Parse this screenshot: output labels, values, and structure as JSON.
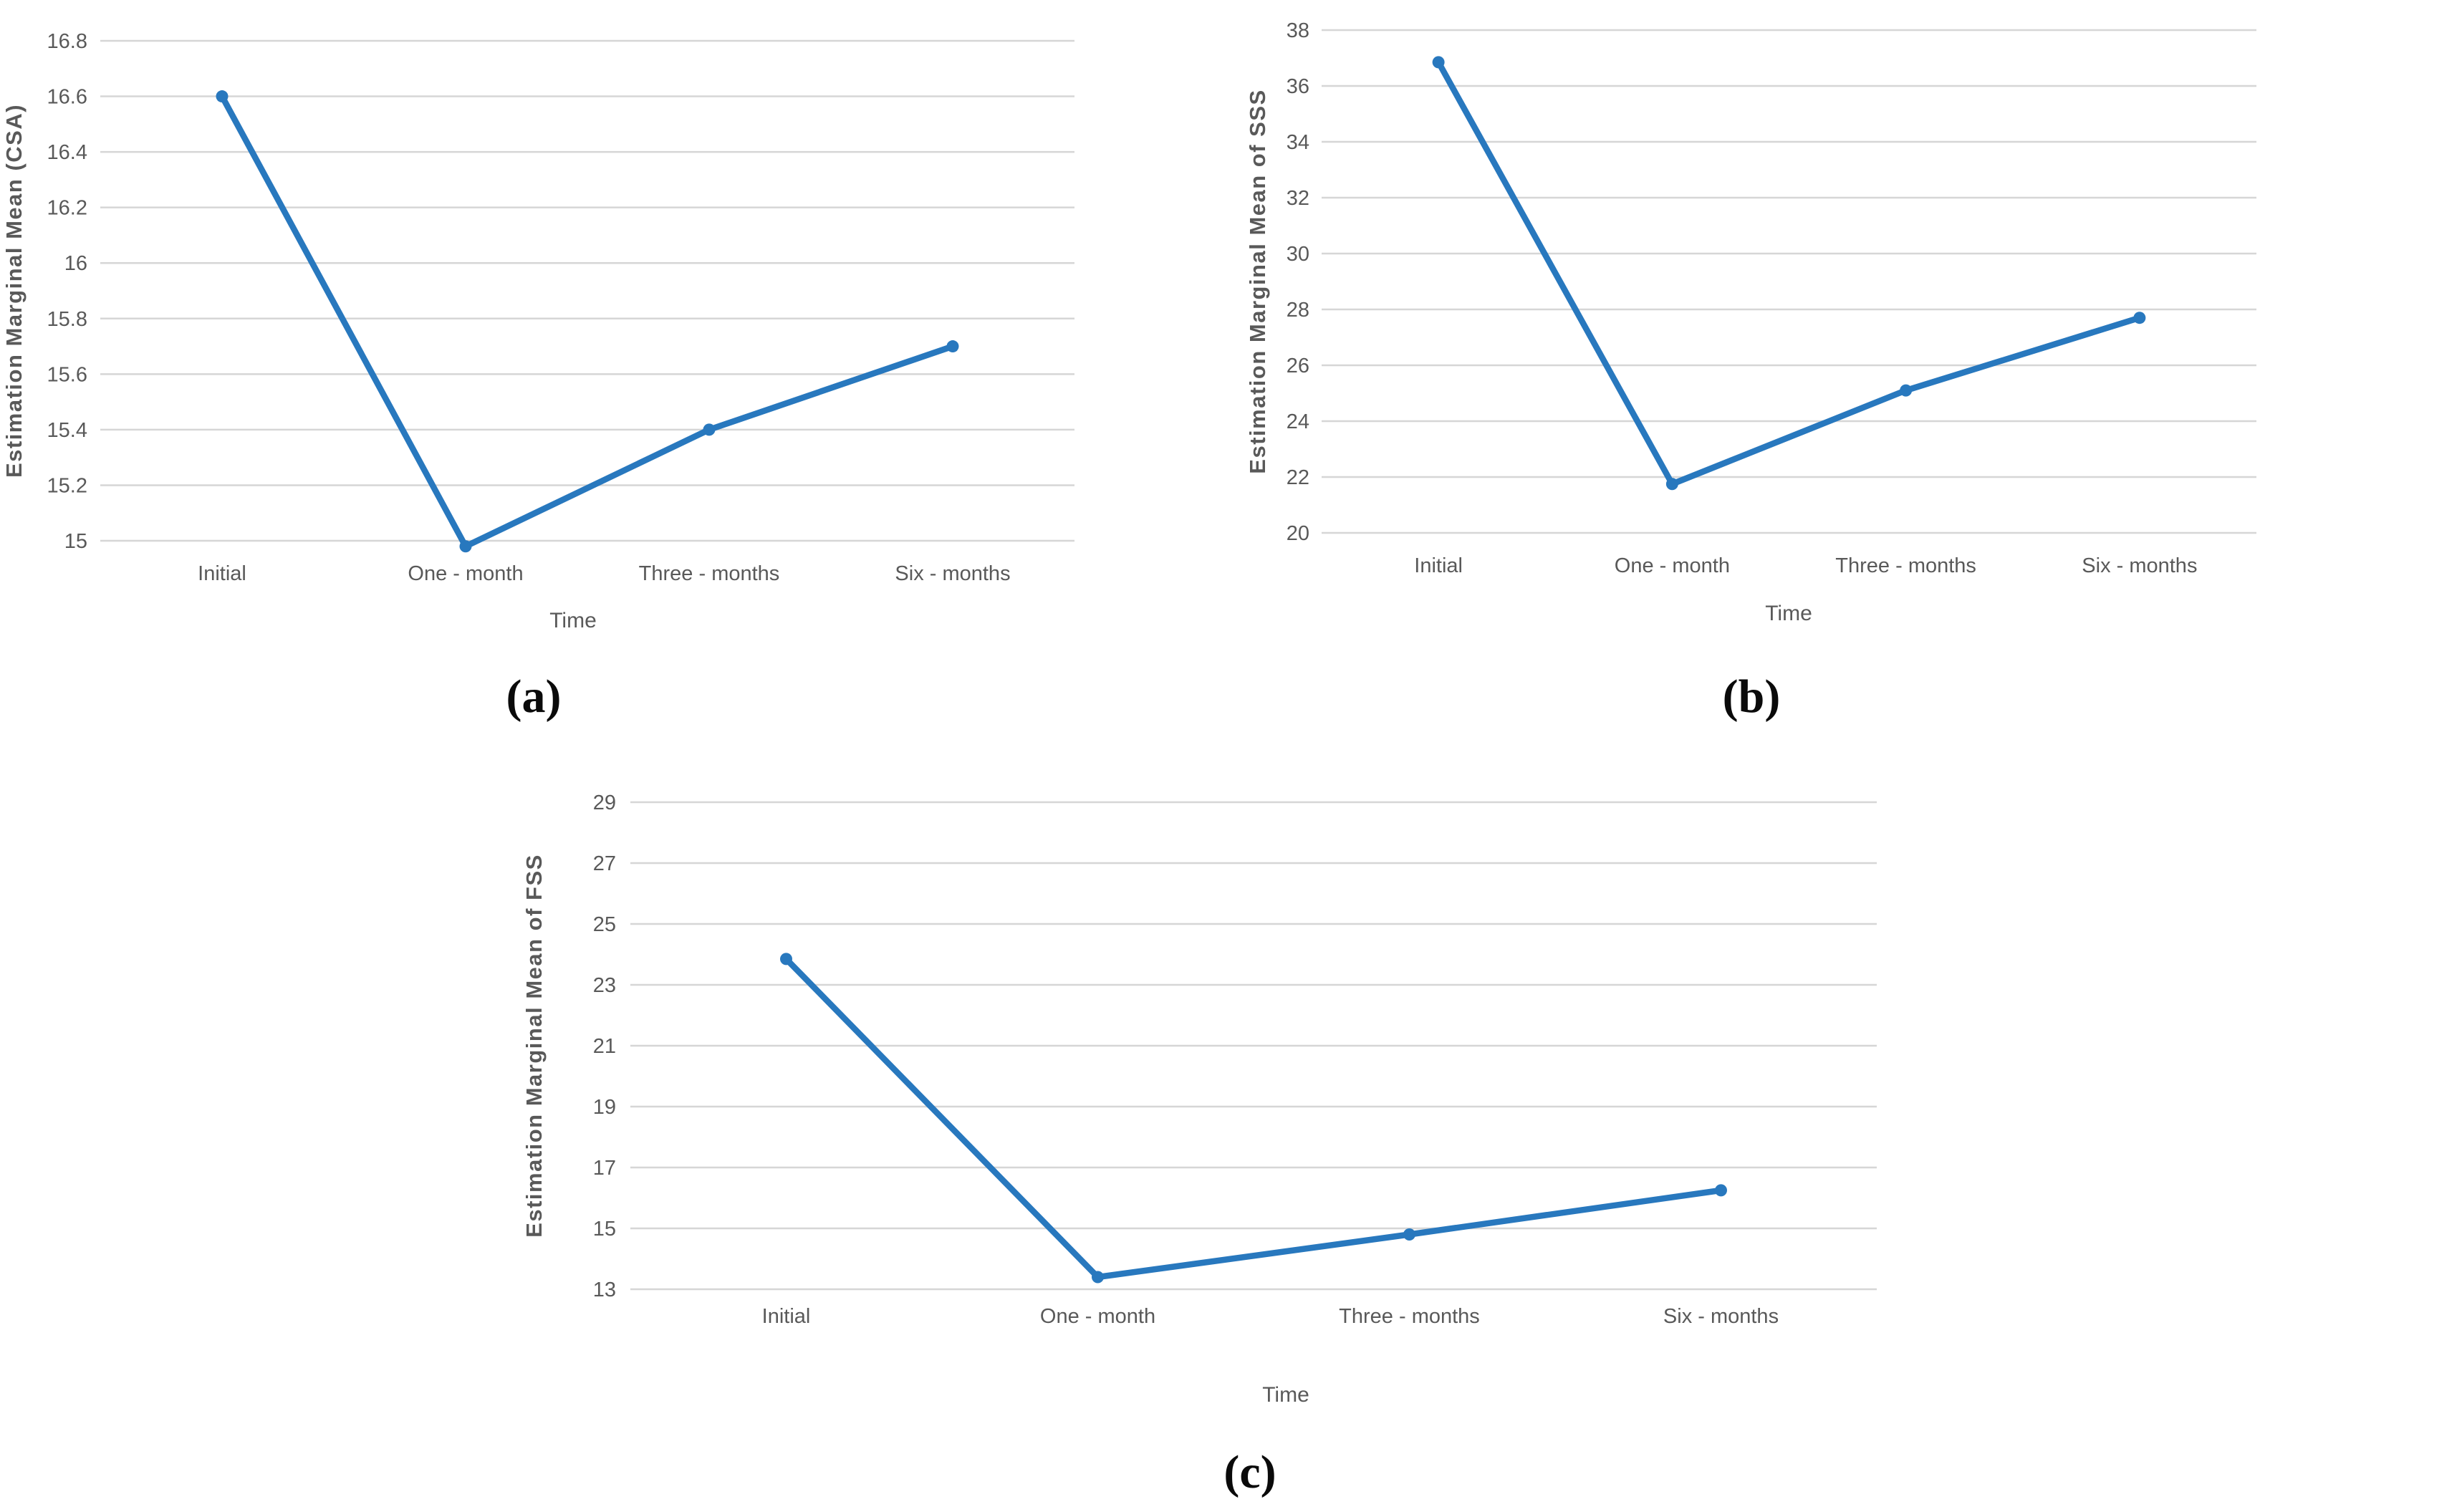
{
  "page": {
    "background": "#ffffff",
    "figure_type": "three-panel line chart figure"
  },
  "styles": {
    "line_color": "#2878BE",
    "marker_color": "#2878BE",
    "grid_color": "#D6D6D6",
    "tick_label_color": "#595959",
    "axis_title_color": "#595959",
    "caption_color": "#0a0a0a"
  },
  "captions": {
    "a": "(a)",
    "b": "(b)",
    "c": "(c)"
  },
  "chart_data": [
    {
      "id": "a",
      "type": "line",
      "caption": "(a)",
      "title": "",
      "xlabel": "Time",
      "ylabel": "Estimation Marginal Mean (CSA)",
      "categories": [
        "Initial",
        "One - month",
        "Three - months",
        "Six - months"
      ],
      "values": [
        16.6,
        14.98,
        15.4,
        15.7
      ],
      "ylim": [
        15,
        16.8
      ],
      "ystep": 0.2,
      "grid": true,
      "legend": false
    },
    {
      "id": "b",
      "type": "line",
      "caption": "(b)",
      "title": "",
      "xlabel": "Time",
      "ylabel": "Estimation Marginal Mean of SSS",
      "categories": [
        "Initial",
        "One - month",
        "Three - months",
        "Six - months"
      ],
      "values": [
        36.85,
        21.75,
        25.1,
        27.7
      ],
      "ylim": [
        20,
        38
      ],
      "ystep": 2,
      "grid": true,
      "legend": false
    },
    {
      "id": "c",
      "type": "line",
      "caption": "(c)",
      "title": "",
      "xlabel": "Time",
      "ylabel": "Estimation Marginal Mean of FSS",
      "categories": [
        "Initial",
        "One - month",
        "Three - months",
        "Six - months"
      ],
      "values": [
        23.85,
        13.4,
        14.8,
        16.25
      ],
      "ylim": [
        13,
        29
      ],
      "ystep": 2,
      "grid": true,
      "legend": false
    }
  ]
}
